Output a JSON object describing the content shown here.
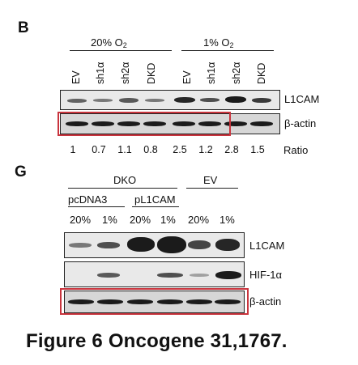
{
  "panel_b": {
    "letter": "B",
    "group_left": {
      "text": "20% O",
      "sub": "2"
    },
    "group_right": {
      "text": "1% O",
      "sub": "2"
    },
    "lanes": [
      "EV",
      "sh1α",
      "sh2α",
      "DKD",
      "EV",
      "sh1α",
      "sh2α",
      "DKD"
    ],
    "blot_labels": [
      "L1CAM",
      "β-actin"
    ],
    "ratios": [
      "1",
      "0.7",
      "1.1",
      "0.8",
      "2.5",
      "1.2",
      "2.8",
      "1.5"
    ],
    "ratio_label": "Ratio"
  },
  "panel_g": {
    "letter": "G",
    "group_dko": "DKO",
    "group_ev": "EV",
    "sub_pcdna3": "pcDNA3",
    "sub_pl1cam": "pL1CAM",
    "conditions": [
      "20%",
      "1%",
      "20%",
      "1%",
      "20%",
      "1%"
    ],
    "blot_labels": [
      "L1CAM",
      "HIF-1α",
      "β-actin"
    ]
  },
  "caption": "Figure 6 Oncogene 31,1767.",
  "colors": {
    "highlight_box": "#c9343d",
    "band": "#1b1b1b"
  }
}
